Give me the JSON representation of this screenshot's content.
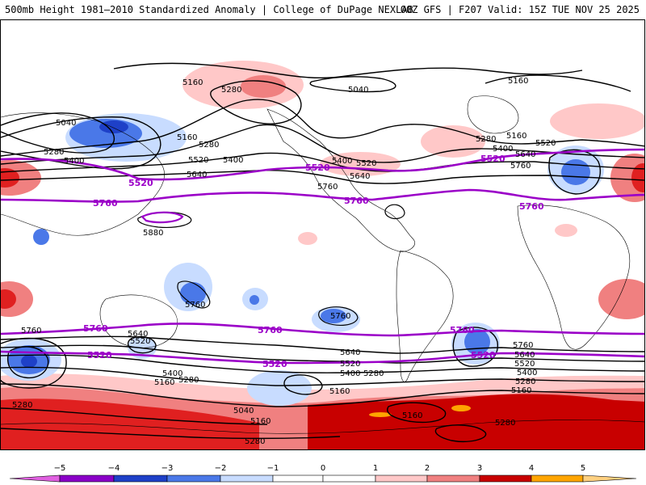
{
  "header": {
    "left_title": "500mb Height 1981–2010 Standardized Anomaly | College of DuPage NEXLAB",
    "right_title": "00Z GFS | F207 Valid: 15Z TUE NOV 25 2025"
  },
  "colors": {
    "contour": "#000000",
    "highlight_contour": "#9b00c8",
    "neg5": "#e060e0",
    "neg4": "#8a00c8",
    "neg3": "#1e40c8",
    "neg2": "#4a78e8",
    "neg1": "#c8dcff",
    "pos1": "#ffc8c8",
    "pos2": "#f08080",
    "pos3": "#e02020",
    "pos4": "#c80000",
    "pos5": "#ffa500"
  },
  "contour_labels": {
    "black": [
      {
        "id": "nh-5160-a",
        "text": "5160"
      },
      {
        "id": "nh-5280-a",
        "text": "5280"
      },
      {
        "id": "nh-5040-a",
        "text": "5040"
      },
      {
        "id": "nh-5160-b",
        "text": "5160"
      },
      {
        "id": "nh-5040-b",
        "text": "5040"
      },
      {
        "id": "nh-5160-c",
        "text": "5160"
      },
      {
        "id": "nh-5280-b",
        "text": "5280"
      },
      {
        "id": "nh-5280-c",
        "text": "5280"
      },
      {
        "id": "nh-5400-a",
        "text": "5400"
      },
      {
        "id": "nh-5520-a",
        "text": "5520"
      },
      {
        "id": "nh-5400-b",
        "text": "5400"
      },
      {
        "id": "nh-5640-a",
        "text": "5640"
      },
      {
        "id": "nh-5400-c",
        "text": "5400"
      },
      {
        "id": "nh-5520-b",
        "text": "5520"
      },
      {
        "id": "nh-5640-b",
        "text": "5640"
      },
      {
        "id": "nh-5760-a",
        "text": "5760"
      },
      {
        "id": "nh-5280-d",
        "text": "5280"
      },
      {
        "id": "nh-5160-d",
        "text": "5160"
      },
      {
        "id": "nh-5400-d",
        "text": "5400"
      },
      {
        "id": "nh-5520-c",
        "text": "5520"
      },
      {
        "id": "nh-5640-c",
        "text": "5640"
      },
      {
        "id": "nh-5760-b",
        "text": "5760"
      },
      {
        "id": "trop-5880",
        "text": "5880"
      },
      {
        "id": "trop-5760-a",
        "text": "5760"
      },
      {
        "id": "trop-5760-b",
        "text": "5760"
      },
      {
        "id": "sh-5760-a",
        "text": "5760"
      },
      {
        "id": "sh-5640-a",
        "text": "5640"
      },
      {
        "id": "sh-5520-a",
        "text": "5520"
      },
      {
        "id": "sh-5400-a",
        "text": "5400"
      },
      {
        "id": "sh-5280-a",
        "text": "5280"
      },
      {
        "id": "sh-5160-a",
        "text": "5160"
      },
      {
        "id": "sh-5640-b",
        "text": "5640"
      },
      {
        "id": "sh-5520-b",
        "text": "5520"
      },
      {
        "id": "sh-5400-b",
        "text": "5400"
      },
      {
        "id": "sh-5280-b",
        "text": "5280"
      },
      {
        "id": "sh-5160-b",
        "text": "5160"
      },
      {
        "id": "sh-5040-a",
        "text": "5040"
      },
      {
        "id": "sh-5160-c",
        "text": "5160"
      },
      {
        "id": "sh-5280-c",
        "text": "5280"
      },
      {
        "id": "sh-5160-d",
        "text": "5160"
      },
      {
        "id": "sh-5280-d",
        "text": "5280"
      },
      {
        "id": "sh-5760-b",
        "text": "5760"
      },
      {
        "id": "sh-5640-c",
        "text": "5640"
      },
      {
        "id": "sh-5520-c",
        "text": "5520"
      },
      {
        "id": "sh-5400-c",
        "text": "5400"
      },
      {
        "id": "sh-5280-e",
        "text": "5280"
      },
      {
        "id": "sh-5160-e",
        "text": "5160"
      },
      {
        "id": "sh-5280-f",
        "text": "5280"
      }
    ],
    "purple": [
      {
        "id": "p-5520-nh-a",
        "text": "5520"
      },
      {
        "id": "p-5520-nh-b",
        "text": "5520"
      },
      {
        "id": "p-5520-nh-c",
        "text": "5520"
      },
      {
        "id": "p-5760-nh-a",
        "text": "5760"
      },
      {
        "id": "p-5760-nh-b",
        "text": "5760"
      },
      {
        "id": "p-5760-nh-c",
        "text": "5760"
      },
      {
        "id": "p-5760-sh-a",
        "text": "5760"
      },
      {
        "id": "p-5760-sh-b",
        "text": "5760"
      },
      {
        "id": "p-5760-sh-c",
        "text": "5760"
      },
      {
        "id": "p-5520-sh-a",
        "text": "5520"
      },
      {
        "id": "p-5520-sh-b",
        "text": "5520"
      },
      {
        "id": "p-5520-sh-c",
        "text": "5520"
      }
    ]
  },
  "colorbar": {
    "ticks": [
      "−5",
      "−4",
      "−3",
      "−2",
      "−1",
      "0",
      "1",
      "2",
      "3",
      "4",
      "5"
    ]
  }
}
